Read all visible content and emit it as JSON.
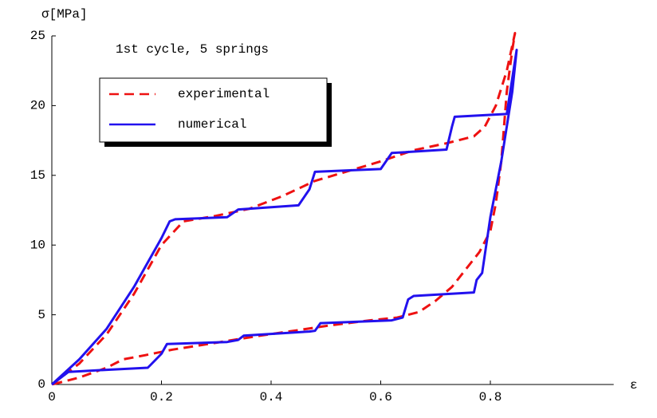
{
  "chart_data": {
    "type": "line",
    "annotation": "1st cycle, 5 springs",
    "xlabel": "ε",
    "ylabel": "σ[MPa]",
    "xlim": [
      0,
      1.025
    ],
    "ylim": [
      0,
      25
    ],
    "xticks": [
      0,
      0.2,
      0.4,
      0.6,
      0.8
    ],
    "yticks": [
      0,
      5,
      10,
      15,
      20,
      25
    ],
    "legend": "upper left",
    "series": [
      {
        "name": "experimental",
        "color": "#ee1111",
        "dash": "dashed",
        "x": [
          0,
          0.05,
          0.1,
          0.15,
          0.2,
          0.24,
          0.3,
          0.36,
          0.42,
          0.48,
          0.54,
          0.6,
          0.66,
          0.72,
          0.77,
          0.79,
          0.81,
          0.83,
          0.845,
          0.84,
          0.83,
          0.82,
          0.81,
          0.8,
          0.78,
          0.76,
          0.73,
          0.7,
          0.67,
          0.63,
          0.58,
          0.5,
          0.45,
          0.38,
          0.3,
          0.22,
          0.17,
          0.13,
          0.1,
          0.05,
          0
        ],
        "values": [
          0,
          1.5,
          3.6,
          6.5,
          10,
          11.7,
          12.1,
          12.6,
          13.5,
          14.6,
          15.3,
          16,
          16.8,
          17.3,
          17.8,
          18.5,
          20,
          22.5,
          25.2,
          24,
          21,
          16,
          13,
          11,
          9.5,
          8.5,
          7,
          6,
          5.2,
          4.8,
          4.6,
          4.2,
          3.9,
          3.5,
          3,
          2.5,
          2.1,
          1.8,
          1.2,
          0.5,
          0
        ]
      },
      {
        "name": "numerical",
        "color": "#2211ee",
        "dash": "solid",
        "x": [
          0,
          0.05,
          0.1,
          0.15,
          0.2,
          0.215,
          0.225,
          0.32,
          0.34,
          0.45,
          0.47,
          0.48,
          0.6,
          0.62,
          0.72,
          0.73,
          0.735,
          0.83,
          0.848,
          0.84,
          0.82,
          0.8,
          0.785,
          0.775,
          0.77,
          0.66,
          0.65,
          0.64,
          0.62,
          0.49,
          0.48,
          0.47,
          0.35,
          0.34,
          0.32,
          0.21,
          0.2,
          0.18,
          0.175,
          0.1,
          0.03,
          0
        ],
        "values": [
          0,
          1.8,
          4,
          7,
          10.5,
          11.7,
          11.85,
          12,
          12.55,
          12.85,
          14,
          15.25,
          15.45,
          16.6,
          16.85,
          18.5,
          19.2,
          19.4,
          24,
          21,
          16,
          12,
          8,
          7.5,
          6.6,
          6.35,
          6.1,
          4.8,
          4.6,
          4.4,
          3.85,
          3.8,
          3.5,
          3.2,
          3.05,
          2.9,
          2.2,
          1.4,
          1.2,
          1.05,
          0.9,
          0
        ]
      }
    ]
  }
}
